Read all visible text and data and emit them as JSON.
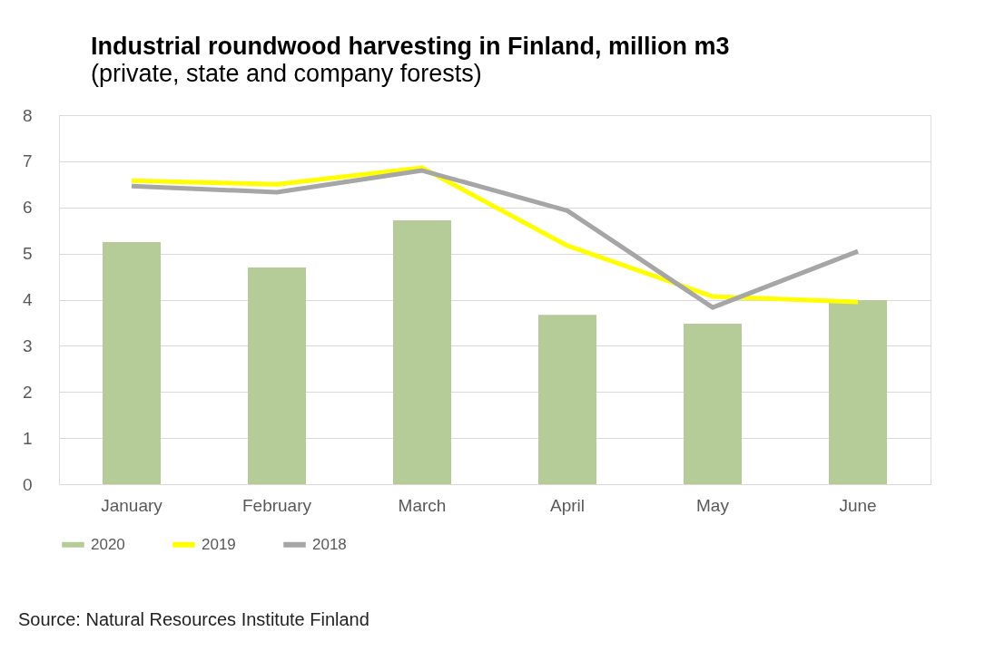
{
  "chart_data": {
    "type": "bar",
    "title": "Industrial roundwood harvesting in Finland, million m3",
    "subtitle": "(private, state and company forests)",
    "categories": [
      "January",
      "February",
      "March",
      "April",
      "May",
      "June"
    ],
    "series": [
      {
        "name": "2020",
        "color": "#b5cc98",
        "values": [
          5.25,
          4.7,
          5.72,
          3.67,
          3.48,
          3.99
        ]
      },
      {
        "name": "2019",
        "type": "line",
        "color": "#ffff00",
        "values": [
          6.58,
          6.5,
          6.86,
          5.17,
          4.07,
          3.95
        ]
      },
      {
        "name": "2018",
        "type": "line",
        "color": "#a6a6a6",
        "values": [
          6.46,
          6.33,
          6.8,
          5.93,
          3.83,
          5.05
        ]
      }
    ],
    "ylim": [
      0,
      8
    ],
    "yticks": [
      0,
      1,
      2,
      3,
      4,
      5,
      6,
      7,
      8
    ],
    "grid": "y",
    "legend": "bottom",
    "marker": "none",
    "line_style": "solid",
    "annotations": [
      "Source: Natural Resources Institute Finland"
    ]
  }
}
